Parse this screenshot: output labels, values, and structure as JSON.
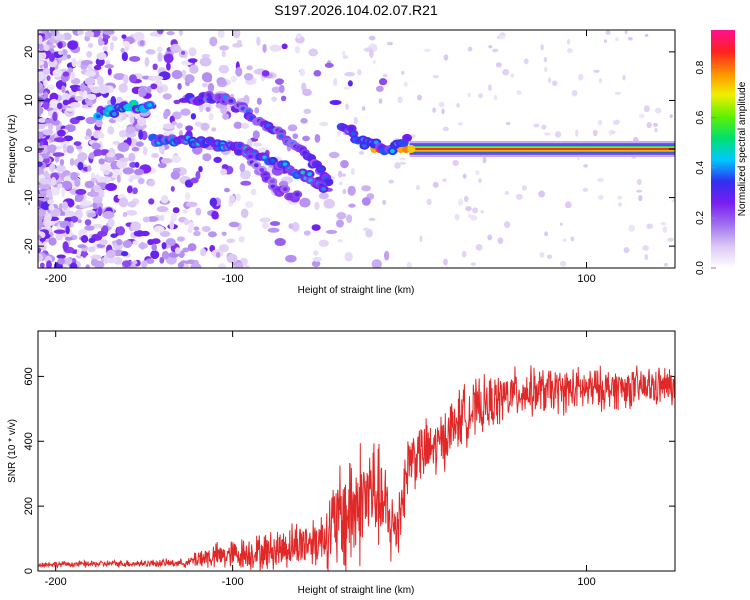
{
  "title": "S197.2026.104.02.07.R21",
  "chart_data": [
    {
      "type": "heatmap",
      "name": "spectrogram",
      "xlabel": "Height of straight line (km)",
      "ylabel": "Frequency (Hz)",
      "xlim": [
        -210,
        150
      ],
      "ylim": [
        -24.5,
        24.5
      ],
      "xticks": [
        -200,
        -100,
        100
      ],
      "yticks": [
        20,
        10,
        0,
        -10,
        -20
      ],
      "colorbar": {
        "label": "Normalized spectral amplitude",
        "range": [
          0,
          0.95
        ],
        "ticks": [
          "0.0",
          "0.2",
          "0.4",
          "0.6",
          "0.8"
        ],
        "colors": [
          "#ffffff",
          "#dcc8f5",
          "#a070f0",
          "#7a1ef0",
          "#3030f0",
          "#00c8ff",
          "#00e070",
          "#60f000",
          "#f0f000",
          "#ff9000",
          "#ff2020",
          "#ff1090"
        ]
      },
      "features": [
        {
          "name": "carrier",
          "freq_hz": 0,
          "x_from": 0,
          "x_to": 150,
          "amplitude": 0.9
        },
        {
          "name": "upper-branch",
          "points": [
            [
              -175,
              7
            ],
            [
              -160,
              8.5
            ],
            [
              -145,
              9.2
            ]
          ],
          "amplitude": 0.35
        },
        {
          "name": "arc-high",
          "points": [
            [
              -125,
              10.5
            ],
            [
              -105,
              10.5
            ],
            [
              -90,
              7
            ],
            [
              -70,
              2
            ],
            [
              -50,
              -4
            ],
            [
              -45,
              -8
            ]
          ],
          "amplitude": 0.25
        },
        {
          "name": "arc-mid",
          "points": [
            [
              -145,
              2
            ],
            [
              -120,
              1.5
            ],
            [
              -95,
              0
            ],
            [
              -75,
              -3
            ],
            [
              -55,
              -6
            ],
            [
              -48,
              -8
            ]
          ],
          "amplitude": 0.3
        },
        {
          "name": "arc-low",
          "points": [
            [
              -90,
              -2
            ],
            [
              -75,
              -8
            ],
            [
              -62,
              -10
            ]
          ],
          "amplitude": 0.2
        },
        {
          "name": "near-zero",
          "points": [
            [
              -38,
              5
            ],
            [
              -25,
              1
            ],
            [
              -10,
              0
            ],
            [
              0,
              2
            ]
          ],
          "amplitude": 0.3
        }
      ]
    },
    {
      "type": "line",
      "name": "snr",
      "xlabel": "Height of straight line (km)",
      "ylabel": "SNR (10 * v/v)",
      "xlim": [
        -210,
        150
      ],
      "ylim": [
        0,
        740
      ],
      "xticks": [
        -200,
        -100,
        100
      ],
      "yticks": [
        0,
        200,
        400,
        600
      ],
      "color": "#e02828",
      "envelope": [
        {
          "x": -210,
          "base": 20,
          "amp": 10
        },
        {
          "x": -125,
          "base": 25,
          "amp": 15
        },
        {
          "x": -120,
          "base": 40,
          "amp": 40
        },
        {
          "x": -80,
          "base": 60,
          "amp": 70
        },
        {
          "x": -50,
          "base": 100,
          "amp": 100
        },
        {
          "x": -35,
          "base": 180,
          "amp": 250
        },
        {
          "x": -20,
          "base": 250,
          "amp": 200
        },
        {
          "x": -8,
          "base": 120,
          "amp": 150
        },
        {
          "x": 0,
          "base": 350,
          "amp": 120
        },
        {
          "x": 15,
          "base": 380,
          "amp": 110
        },
        {
          "x": 30,
          "base": 480,
          "amp": 110
        },
        {
          "x": 60,
          "base": 550,
          "amp": 90
        },
        {
          "x": 100,
          "base": 560,
          "amp": 80
        },
        {
          "x": 150,
          "base": 570,
          "amp": 70
        }
      ]
    }
  ]
}
